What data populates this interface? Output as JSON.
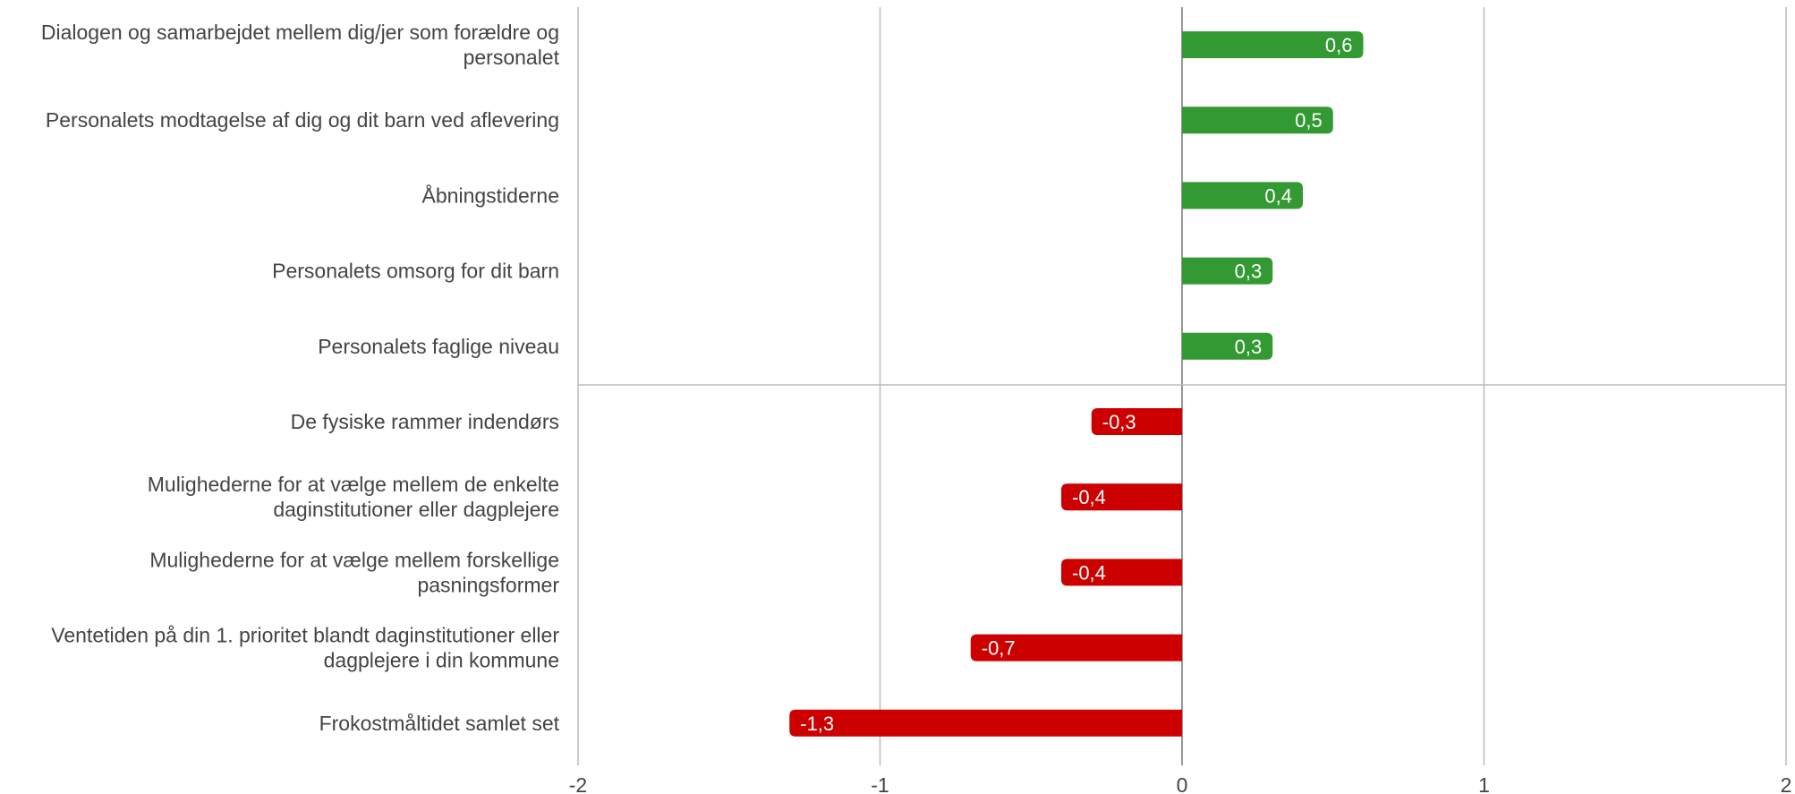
{
  "chart_data": {
    "type": "bar",
    "orientation": "horizontal",
    "title": "",
    "xlabel": "",
    "ylabel": "",
    "xlim": [
      -2,
      2
    ],
    "xticks": [
      -2,
      -1,
      0,
      1,
      2
    ],
    "grid": true,
    "colors": {
      "positive": "#339933",
      "negative": "#cc0000",
      "grid": "#bbbbbb",
      "text": "#444444"
    },
    "categories": [
      "Dialogen og samarbejdet mellem dig/jer som forældre og personalet",
      "Personalets modtagelse af dig og dit barn ved aflevering",
      "Åbningstiderne",
      "Personalets omsorg for dit barn",
      "Personalets faglige niveau",
      "De fysiske rammer indendørs",
      "Mulighederne for at vælge mellem de enkelte daginstitutioner eller dagplejere",
      "Mulighederne for at vælge mellem forskellige pasningsformer",
      "Ventetiden på din 1. prioritet blandt daginstitutioner eller dagplejere i din kommune",
      "Frokostmåltidet samlet set"
    ],
    "category_lines": [
      [
        "Dialogen og samarbejdet mellem dig/jer som forældre og",
        "personalet"
      ],
      [
        "Personalets modtagelse af dig og dit barn ved aflevering"
      ],
      [
        "Åbningstiderne"
      ],
      [
        "Personalets omsorg for dit barn"
      ],
      [
        "Personalets faglige niveau"
      ],
      [
        "De fysiske rammer indendørs"
      ],
      [
        "Mulighederne for at vælge mellem de enkelte",
        "daginstitutioner eller dagplejere"
      ],
      [
        "Mulighederne for at vælge mellem forskellige",
        "pasningsformer"
      ],
      [
        "Ventetiden på din 1. prioritet blandt daginstitutioner eller",
        "dagplejere i din kommune"
      ],
      [
        "Frokostmåltidet samlet set"
      ]
    ],
    "values": [
      0.6,
      0.5,
      0.4,
      0.3,
      0.3,
      -0.3,
      -0.4,
      -0.4,
      -0.7,
      -1.3
    ],
    "value_labels": [
      "0,6",
      "0,5",
      "0,4",
      "0,3",
      "0,3",
      "-0,3",
      "-0,4",
      "-0,4",
      "-0,7",
      "-1,3"
    ],
    "tick_labels": [
      "-2",
      "-1",
      "0",
      "1",
      "2"
    ]
  }
}
